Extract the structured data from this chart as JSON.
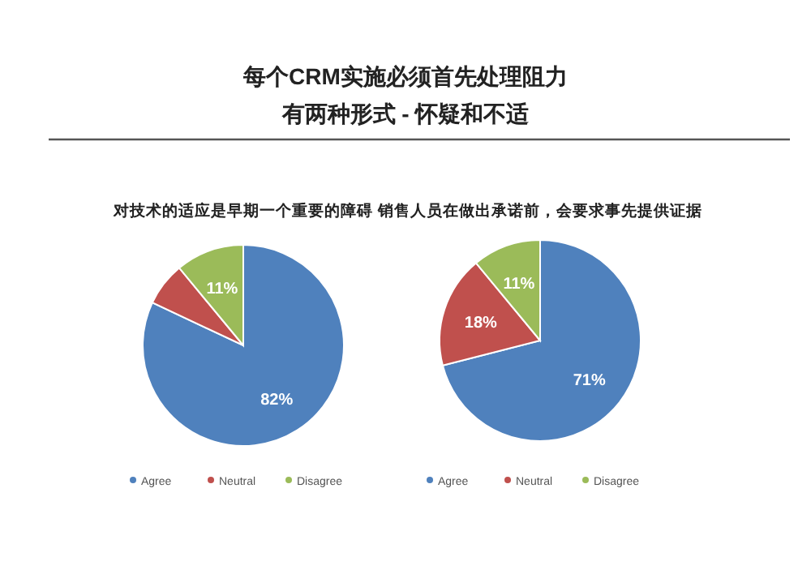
{
  "chart_data": [
    {
      "type": "other",
      "title": "每个CRM实施必须首先处理阻力",
      "subtitle": "有两种形式 - 怀疑和不适"
    },
    {
      "type": "pie",
      "title": "对技术的适应是早期一个重要的障碍",
      "categories": [
        "Agree",
        "Neutral",
        "Disagree"
      ],
      "values": [
        82,
        7,
        11
      ],
      "colors": [
        "#4f81bd",
        "#c0504d",
        "#9bbb59"
      ],
      "value_labels": [
        "82%",
        null,
        "11%"
      ],
      "legend": "bottom"
    },
    {
      "type": "pie",
      "title": "销售人员在做出承诺前，会要求事先提供证据",
      "categories": [
        "Agree",
        "Neutral",
        "Disagree"
      ],
      "values": [
        71,
        18,
        11
      ],
      "colors": [
        "#4f81bd",
        "#c0504d",
        "#9bbb59"
      ],
      "value_labels": [
        "71%",
        "18%",
        "11%"
      ],
      "legend": "bottom"
    }
  ]
}
